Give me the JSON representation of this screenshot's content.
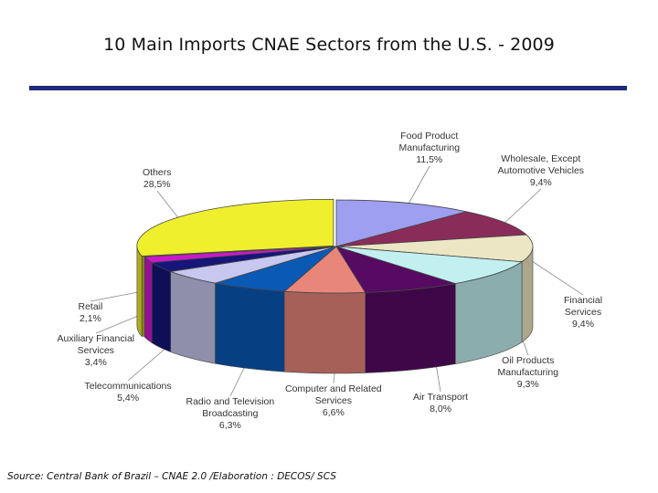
{
  "colors": {
    "title_rule": "#1f2b78",
    "slices": {
      "Food Product Manufacturing": "#9e9ff0",
      "Wholesale, Except Automotive Vehicles": "#8a2c5a",
      "Financial Services": "#ede6c4",
      "Oil Products Manufacturing": "#c2f0f0",
      "Air Transport": "#560a62",
      "Computer and Related Services": "#e8867a",
      "Radio and Television Broadcasting": "#0a59b4",
      "Telecommunications": "#c7c7ef",
      "Auxiliary Financial Services": "#15157a",
      "Retail": "#cc18cc",
      "Others": "#efef2e"
    }
  },
  "chart_data": {
    "type": "pie",
    "style": "3d-exploded",
    "title": "10 Main Imports CNAE Sectors from the U.S. - 2009",
    "slices": [
      {
        "name": "Food Product Manufacturing",
        "label_lines": [
          "Food Product",
          "Manufacturing"
        ],
        "value_text": "11,5%",
        "value": 11.5
      },
      {
        "name": "Wholesale, Except Automotive Vehicles",
        "label_lines": [
          "Wholesale, Except",
          "Automotive Vehicles"
        ],
        "value_text": "9,4%",
        "value": 9.4
      },
      {
        "name": "Financial Services",
        "label_lines": [
          "Financial",
          "Services"
        ],
        "value_text": "9,4%",
        "value": 9.4
      },
      {
        "name": "Oil Products Manufacturing",
        "label_lines": [
          "Oil Products",
          "Manufacturing"
        ],
        "value_text": "9,3%",
        "value": 9.3
      },
      {
        "name": "Air Transport",
        "label_lines": [
          "Air Transport"
        ],
        "value_text": "8,0%",
        "value": 8.0
      },
      {
        "name": "Computer and Related Services",
        "label_lines": [
          "Computer and Related",
          "Services"
        ],
        "value_text": "6,6%",
        "value": 6.6
      },
      {
        "name": "Radio and Television Broadcasting",
        "label_lines": [
          "Radio and Television",
          "Broadcasting"
        ],
        "value_text": "6,3%",
        "value": 6.3
      },
      {
        "name": "Telecommunications",
        "label_lines": [
          "Telecommunications"
        ],
        "value_text": "5,4%",
        "value": 5.4
      },
      {
        "name": "Auxiliary Financial Services",
        "label_lines": [
          "Auxiliary Financial",
          "Services"
        ],
        "value_text": "3,4%",
        "value": 3.4
      },
      {
        "name": "Retail",
        "label_lines": [
          "Retail"
        ],
        "value_text": "2,1%",
        "value": 2.1
      },
      {
        "name": "Others",
        "label_lines": [
          "Others"
        ],
        "value_text": "28,5%",
        "value": 28.5
      }
    ]
  },
  "source": "Source: Central Bank of Brazil – CNAE 2.0 /Elaboration : DECOS/ SCS"
}
